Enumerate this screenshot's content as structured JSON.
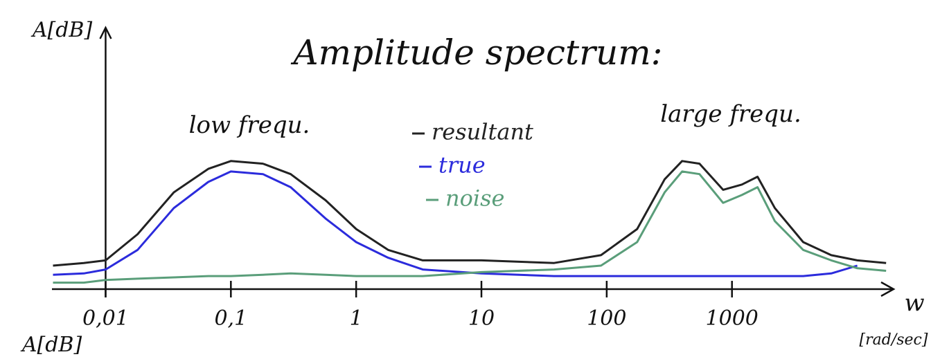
{
  "chart_data": {
    "type": "line",
    "title": "Amplitude spectrum:",
    "ylabel": "A[dB]",
    "xlabel": "w",
    "xunit": "[rad/sec]",
    "annotations": [
      "low frequ.",
      "large frequ."
    ],
    "next_chart_ylabel": "A[dB]",
    "xscale": "log",
    "xlim": [
      0.0035,
      20000
    ],
    "ylim": [
      0,
      10
    ],
    "xticks": [
      {
        "value": 0.01,
        "label": "0,01"
      },
      {
        "value": 0.1,
        "label": "0,1"
      },
      1,
      10,
      100,
      1000
    ],
    "x": [
      0.0038,
      0.0067,
      0.01,
      0.018,
      0.035,
      0.066,
      0.1,
      0.18,
      0.3,
      0.57,
      1,
      1.8,
      3.4,
      10,
      38,
      90,
      175,
      290,
      400,
      550,
      850,
      1200,
      1600,
      2200,
      3700,
      6200,
      10000,
      17000
    ],
    "series": [
      {
        "name": "resultant",
        "color": "#222222",
        "values": [
          0.9,
          1.0,
          1.1,
          2.1,
          3.7,
          4.6,
          4.9,
          4.8,
          4.4,
          3.4,
          2.3,
          1.5,
          1.1,
          1.1,
          1.0,
          1.3,
          2.3,
          4.2,
          4.9,
          4.8,
          3.8,
          4.0,
          4.3,
          3.1,
          1.8,
          1.3,
          1.1,
          1.0
        ]
      },
      {
        "name": "true",
        "color": "#2b2bdc",
        "values": [
          0.55,
          0.6,
          0.75,
          1.5,
          3.1,
          4.1,
          4.5,
          4.4,
          3.9,
          2.7,
          1.8,
          1.2,
          0.75,
          0.6,
          0.5,
          0.5,
          0.5,
          0.5,
          0.5,
          0.5,
          0.5,
          0.5,
          0.5,
          0.5,
          0.5,
          0.6,
          0.9,
          null
        ]
      },
      {
        "name": "noise",
        "color": "#5a9e7a",
        "values": [
          0.25,
          0.25,
          0.35,
          0.4,
          0.45,
          0.5,
          0.5,
          0.55,
          0.6,
          0.55,
          0.5,
          0.5,
          0.5,
          0.65,
          0.75,
          0.9,
          1.8,
          3.7,
          4.5,
          4.4,
          3.3,
          3.6,
          3.9,
          2.6,
          1.5,
          1.1,
          0.8,
          0.7
        ]
      }
    ]
  }
}
